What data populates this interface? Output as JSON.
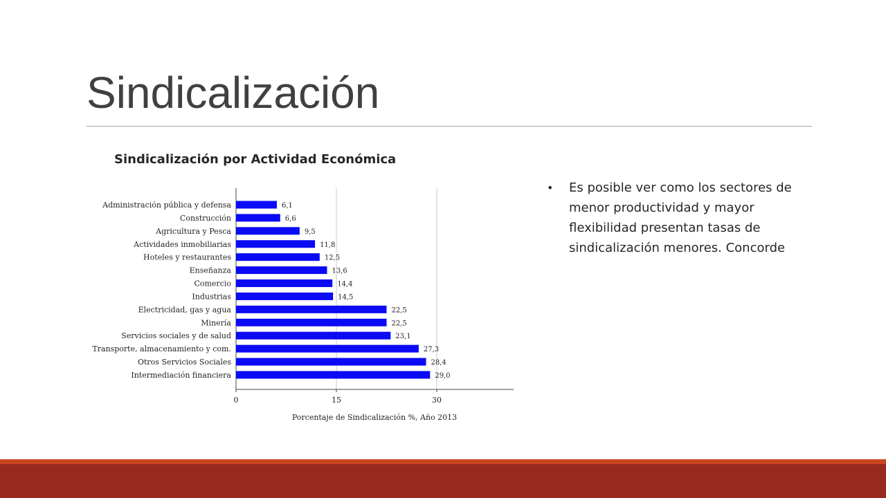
{
  "slide": {
    "title": "Sindicalización",
    "chart_heading": "Sindicalización por Actividad Económica",
    "bullets": [
      "Es posible ver como los sectores de menor productividad y mayor flexibilidad presentan tasas de sindicalización menores. Concorde"
    ]
  },
  "colors": {
    "bar": "#0a0af5",
    "band_top": "#c8451f",
    "band_bottom": "#99291d",
    "title": "#404040"
  },
  "chart_data": {
    "type": "bar",
    "orientation": "horizontal",
    "categories": [
      "Administración pública y defensa",
      "Construcción",
      "Agricultura y Pesca",
      "Actividades inmobiliarias",
      "Hoteles y restaurantes",
      "Enseñanza",
      "Comercio",
      "Industrias",
      "Electricidad, gas y agua",
      "Minería",
      "Servicios sociales y de salud",
      "Transporte, almacenamiento y com.",
      "Otros Servicios Sociales",
      "Intermediación financiera"
    ],
    "values": [
      6.1,
      6.6,
      9.5,
      11.8,
      12.5,
      13.6,
      14.4,
      14.5,
      22.5,
      22.5,
      23.1,
      27.3,
      28.4,
      29.0
    ],
    "value_labels": [
      "6,1",
      "6,6",
      "9,5",
      "11,8",
      "12,5",
      "13,6",
      "14,4",
      "14,5",
      "22,5",
      "22,5",
      "23,1",
      "27,3",
      "28,4",
      "29,0"
    ],
    "xlabel": "Porcentaje de Sindicalización %, Año 2013",
    "ylabel": "",
    "xlim": [
      0,
      41
    ],
    "xticks": [
      0,
      15,
      30
    ],
    "xtick_labels": [
      "0",
      "15",
      "30"
    ],
    "grid": true
  }
}
